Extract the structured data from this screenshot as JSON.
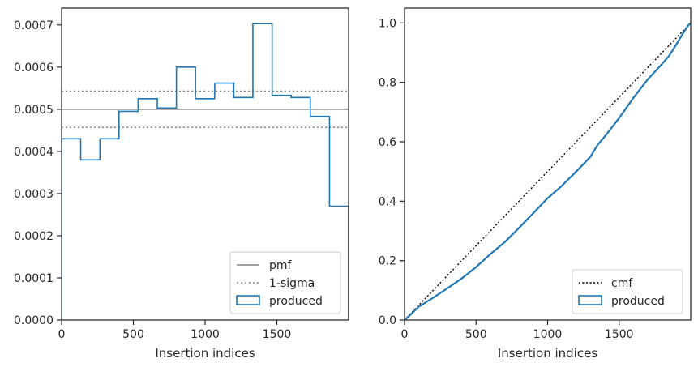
{
  "colors": {
    "produced": "#1f77b4",
    "pmf": "#808080",
    "sigma": "#808080",
    "cmf": "#000000",
    "axes": "#262626"
  },
  "chart_data": [
    {
      "type": "histogram-step",
      "xlabel": "Insertion indices",
      "ylabel": "",
      "xlim": [
        0,
        2000
      ],
      "ylim": [
        0,
        0.00074
      ],
      "xticks": [
        0,
        500,
        1000,
        1500
      ],
      "yticks": [
        0,
        0.0001,
        0.0002,
        0.0003,
        0.0004,
        0.0005,
        0.0006,
        0.0007
      ],
      "xtick_labels": [
        "0",
        "500",
        "1000",
        "1500"
      ],
      "ytick_labels": [
        "0.0000",
        "0.0001",
        "0.0002",
        "0.0003",
        "0.0004",
        "0.0005",
        "0.0006",
        "0.0007"
      ],
      "bin_edges": [
        0,
        133,
        267,
        400,
        533,
        667,
        800,
        933,
        1067,
        1200,
        1333,
        1467,
        1600,
        1733,
        1867,
        2000
      ],
      "series": [
        {
          "name": "produced",
          "values": [
            0.00043,
            0.00038,
            0.00043,
            0.000495,
            0.000525,
            0.000503,
            0.0006,
            0.000525,
            0.000562,
            0.000528,
            0.000703,
            0.000533,
            0.000528,
            0.000483,
            0.00027
          ]
        }
      ],
      "hlines": [
        {
          "name": "pmf",
          "value": 0.0005,
          "style": "solid"
        },
        {
          "name": "1-sigma",
          "value": 0.000543,
          "style": "dotted"
        },
        {
          "name": "1-sigma",
          "value": 0.000457,
          "style": "dotted"
        }
      ],
      "legend": {
        "position": "lower-right",
        "entries": [
          "pmf",
          "1-sigma",
          "produced"
        ]
      }
    },
    {
      "type": "line",
      "xlabel": "Insertion indices",
      "ylabel": "",
      "xlim": [
        0,
        2000
      ],
      "ylim": [
        0,
        1.05
      ],
      "xticks": [
        0,
        500,
        1000,
        1500
      ],
      "yticks": [
        0,
        0.2,
        0.4,
        0.6,
        0.8,
        1.0
      ],
      "xtick_labels": [
        "0",
        "500",
        "1000",
        "1500"
      ],
      "ytick_labels": [
        "0.0",
        "0.2",
        "0.4",
        "0.6",
        "0.8",
        "1.0"
      ],
      "series": [
        {
          "name": "cmf",
          "style": "dotted",
          "x": [
            0,
            2000
          ],
          "y": [
            0,
            1
          ]
        },
        {
          "name": "produced",
          "style": "step",
          "x": [
            0,
            50,
            100,
            150,
            200,
            300,
            400,
            500,
            600,
            700,
            800,
            900,
            1000,
            1100,
            1200,
            1300,
            1350,
            1400,
            1500,
            1600,
            1700,
            1800,
            1850,
            1900,
            1950,
            1980,
            2000
          ],
          "y": [
            0,
            0.022,
            0.045,
            0.06,
            0.075,
            0.107,
            0.14,
            0.178,
            0.222,
            0.262,
            0.31,
            0.36,
            0.41,
            0.452,
            0.5,
            0.55,
            0.59,
            0.618,
            0.68,
            0.748,
            0.81,
            0.862,
            0.89,
            0.928,
            0.968,
            0.99,
            1.0
          ]
        }
      ],
      "legend": {
        "position": "lower-right",
        "entries": [
          "cmf",
          "produced"
        ]
      }
    }
  ]
}
